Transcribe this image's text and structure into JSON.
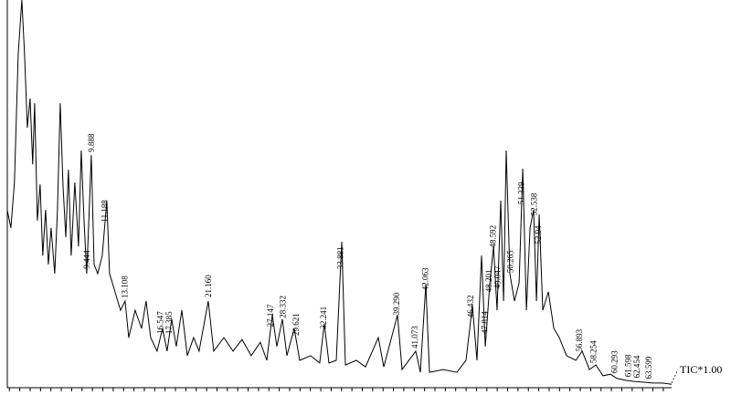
{
  "chart_data": {
    "type": "line",
    "trace_label": "TIC*1.00",
    "color": "#000000",
    "xlim": [
      1.8,
      65.8
    ],
    "ylim": [
      0,
      100
    ],
    "minor_xticks": [
      2,
      3,
      4,
      5,
      6,
      7,
      8,
      9,
      10,
      11,
      12,
      13,
      14,
      15,
      16,
      17,
      18,
      19,
      20,
      21,
      22,
      23,
      24,
      25,
      26,
      27,
      28,
      29,
      30,
      31,
      32,
      33,
      34,
      35,
      36,
      37,
      38,
      39,
      40,
      41,
      42,
      43,
      44,
      45,
      46,
      47,
      48,
      49,
      50,
      51,
      52,
      53,
      54,
      55,
      56,
      57,
      58,
      59,
      60,
      61,
      62,
      63,
      64,
      65
    ],
    "x": [
      1.79,
      2.14,
      2.49,
      2.85,
      3.2,
      3.46,
      3.73,
      3.99,
      4.25,
      4.43,
      4.7,
      4.96,
      5.22,
      5.49,
      5.75,
      6.02,
      6.37,
      6.63,
      6.9,
      7.16,
      7.43,
      7.69,
      7.95,
      8.31,
      8.66,
      8.92,
      9.19,
      9.45,
      9.63,
      9.89,
      10.16,
      10.51,
      10.95,
      11.39,
      11.65,
      12.18,
      12.71,
      13.15,
      13.5,
      14.12,
      14.73,
      15.17,
      15.61,
      16.23,
      16.76,
      17.2,
      17.64,
      18.08,
      18.61,
      19.14,
      19.75,
      20.28,
      21.16,
      21.69,
      22.66,
      23.54,
      24.42,
      25.3,
      26.18,
      26.8,
      27.33,
      27.77,
      28.3,
      28.74,
      29.44,
      29.97,
      31.02,
      31.9,
      32.34,
      32.79,
      33.49,
      34.02,
      34.37,
      35.43,
      36.31,
      37.54,
      38.07,
      39.39,
      39.83,
      41.15,
      41.59,
      42.12,
      42.47,
      43.79,
      45.11,
      45.99,
      46.61,
      47.05,
      47.49,
      47.85,
      48.29,
      48.64,
      48.99,
      49.34,
      49.61,
      49.87,
      50.22,
      50.66,
      51.11,
      51.46,
      51.81,
      52.16,
      52.51,
      52.78,
      53.04,
      53.39,
      53.92,
      54.45,
      54.98,
      55.68,
      56.57,
      57.18,
      57.89,
      58.5,
      59.2,
      59.91,
      60.52,
      61.4,
      62.28,
      63.16,
      64.04,
      64.92,
      65.8
    ],
    "values": [
      45.5,
      40.8,
      52.6,
      85.8,
      100,
      85.8,
      66.8,
      74.4,
      57.3,
      73.2,
      42.7,
      52.1,
      33.6,
      45.5,
      31.3,
      40.8,
      28.9,
      45.5,
      73.2,
      52.1,
      38.4,
      55.9,
      33.6,
      52.6,
      36.0,
      60.9,
      43.1,
      28.9,
      40.8,
      59.7,
      31.3,
      28.9,
      33.6,
      47.9,
      28.9,
      24.2,
      19.4,
      21.8,
      12.3,
      19.4,
      14.7,
      21.8,
      12.3,
      8.8,
      14.7,
      8.8,
      17.1,
      10.0,
      19.4,
      7.6,
      12.3,
      8.8,
      21.8,
      8.8,
      12.3,
      8.8,
      11.8,
      7.6,
      11.1,
      6.4,
      18.2,
      10.0,
      17.1,
      7.6,
      14.7,
      6.4,
      7.6,
      5.7,
      15.9,
      5.7,
      6.4,
      37.2,
      5.2,
      6.4,
      4.7,
      12.3,
      4.7,
      18.2,
      4.0,
      8.8,
      3.3,
      26.1,
      3.3,
      4.0,
      3.3,
      6.4,
      20.6,
      6.4,
      33.6,
      10.0,
      26.5,
      36.0,
      19.4,
      47.9,
      21.8,
      60.9,
      28.9,
      21.8,
      26.5,
      56.2,
      19.4,
      40.8,
      45.5,
      21.8,
      44.3,
      19.4,
      24.2,
      14.7,
      12.3,
      7.6,
      6.4,
      8.8,
      4.0,
      5.2,
      2.4,
      2.8,
      1.7,
      1.2,
      0.9,
      0.7,
      0.5,
      0.5,
      0.2
    ],
    "peak_times": [
      9.888,
      9.444,
      11.188,
      13.108,
      16.547,
      17.385,
      {
        "value": 21.16,
        "label": "21.160"
      },
      27.147,
      28.332,
      29.621,
      32.241,
      33.881,
      {
        "value": 39.29,
        "label": "39.290"
      },
      41.073,
      42.063,
      46.432,
      47.814,
      48.201,
      48.592,
      49.047,
      50.265,
      51.339,
      52.538,
      52.94,
      56.893,
      58.254,
      60.293,
      61.598,
      62.454,
      63.599
    ]
  }
}
